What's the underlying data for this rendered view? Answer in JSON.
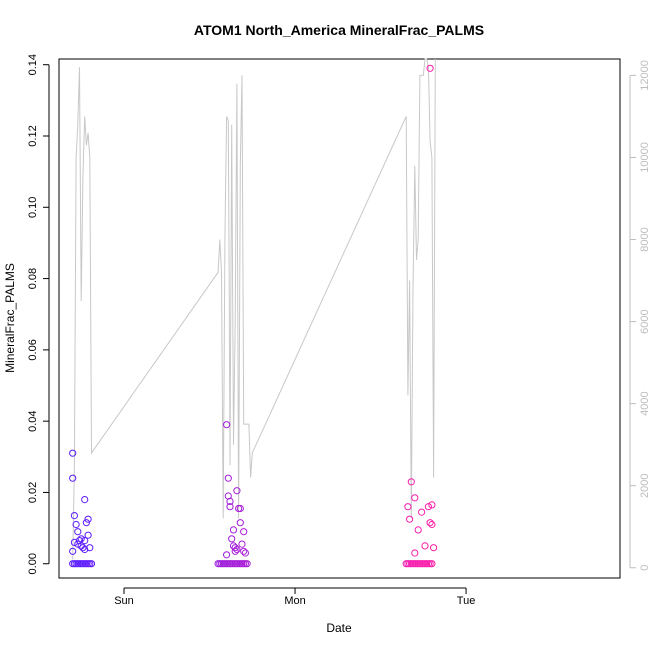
{
  "chart_data": {
    "type": "scatter",
    "title": "ATOM1 North_America MineralFrac_PALMS",
    "xlabel": "Date",
    "ylabel": "MineralFrac_PALMS",
    "x_ticks": [
      "Sun",
      "Mon",
      "Tue"
    ],
    "y_ticks": [
      "0.00",
      "0.02",
      "0.04",
      "0.06",
      "0.08",
      "0.10",
      "0.12",
      "0.14"
    ],
    "y2_ticks": [
      "0",
      "2000",
      "4000",
      "6000",
      "8000",
      "10000",
      "12000"
    ],
    "xlim": [
      -0.38,
      2.9
    ],
    "ylim": [
      -0.004,
      0.1416
    ],
    "y2lim": [
      -250,
      12400
    ],
    "grid": false,
    "colors": {
      "line": "#c8c8c8",
      "right_axis": "#bdbdbd",
      "points_start": "#5a1dff",
      "points_end": "#ff1fa9"
    },
    "series": [
      {
        "type": "scatter",
        "axis": "left",
        "x": [
          -0.3,
          -0.29,
          -0.28,
          -0.27,
          -0.26,
          -0.25,
          -0.24,
          -0.23,
          -0.22,
          -0.21,
          -0.2,
          -0.19,
          -0.3,
          -0.3,
          -0.29,
          -0.28,
          -0.27,
          -0.26,
          -0.25,
          -0.24,
          -0.23,
          -0.22,
          -0.21,
          -0.2,
          -0.23,
          -0.21,
          -0.3,
          -0.29,
          -0.27,
          -0.25,
          -0.23,
          0.55,
          0.56,
          0.57,
          0.58,
          0.59,
          0.6,
          0.61,
          0.62,
          0.63,
          0.64,
          0.65,
          0.66,
          0.67,
          0.68,
          0.69,
          0.7,
          0.71,
          0.72,
          0.6,
          0.61,
          0.61,
          0.62,
          0.63,
          0.64,
          0.65,
          0.66,
          0.67,
          0.68,
          0.69,
          0.7,
          0.71,
          0.62,
          0.64,
          0.66,
          0.68,
          0.7,
          0.65,
          0.6,
          1.65,
          1.66,
          1.67,
          1.68,
          1.69,
          1.7,
          1.71,
          1.72,
          1.73,
          1.74,
          1.75,
          1.76,
          1.77,
          1.78,
          1.79,
          1.8,
          1.66,
          1.67,
          1.68,
          1.7,
          1.72,
          1.74,
          1.76,
          1.78,
          1.79,
          1.8,
          1.8,
          1.79,
          1.81,
          1.7
        ],
        "y": [
          0,
          0,
          0,
          0,
          0,
          0,
          0,
          0,
          0,
          0,
          0,
          0,
          0.031,
          0.024,
          0.0135,
          0.011,
          0.009,
          0.0065,
          0.005,
          0.0045,
          0.004,
          0.0115,
          0.0125,
          0.0045,
          0.018,
          0.008,
          0.0035,
          0.006,
          0.0055,
          0.007,
          0.0065,
          0,
          0,
          0,
          0,
          0,
          0,
          0,
          0,
          0,
          0,
          0,
          0,
          0,
          0,
          0,
          0,
          0,
          0,
          0.039,
          0.024,
          0.019,
          0.0175,
          0.007,
          0.005,
          0.0045,
          0.004,
          0.0155,
          0.0115,
          0.0055,
          0.0035,
          0.003,
          0.016,
          0.0095,
          0.0205,
          0.0155,
          0.009,
          0.0035,
          0.0025,
          0,
          0,
          0,
          0,
          0,
          0,
          0,
          0,
          0,
          0,
          0,
          0,
          0,
          0,
          0,
          0,
          0.016,
          0.0125,
          0.023,
          0.0185,
          0.0095,
          0.0145,
          0.005,
          0.016,
          0.0115,
          0.011,
          0.0165,
          0.139,
          0.0045,
          0.003
        ]
      },
      {
        "type": "line",
        "axis": "right",
        "x": [
          -0.3,
          -0.29,
          -0.28,
          -0.27,
          -0.26,
          -0.25,
          -0.24,
          -0.23,
          -0.22,
          -0.21,
          -0.2,
          -0.19,
          0.55,
          0.56,
          0.57,
          0.58,
          0.59,
          0.6,
          0.61,
          0.615,
          0.62,
          0.63,
          0.64,
          0.65,
          0.66,
          0.67,
          0.68,
          0.69,
          0.7,
          0.71,
          0.72,
          0.73,
          0.74,
          0.75,
          1.65,
          1.66,
          1.67,
          1.68,
          1.69,
          1.7,
          1.71,
          1.72,
          1.73,
          1.74,
          1.75,
          1.76,
          1.77,
          1.78,
          1.79,
          1.8,
          1.81,
          1.82
        ],
        "y": [
          200,
          2500,
          10000,
          10800,
          12200,
          6500,
          9500,
          11000,
          10300,
          10600,
          10000,
          2800,
          7200,
          8000,
          7200,
          1200,
          8000,
          11000,
          10900,
          6800,
          2500,
          10800,
          3000,
          6000,
          11800,
          1200,
          9800,
          12000,
          3500,
          3500,
          3500,
          3500,
          2200,
          2800,
          11000,
          4200,
          7000,
          1200,
          6800,
          9800,
          7500,
          8000,
          12000,
          12000,
          12000,
          12400,
          12400,
          12200,
          10400,
          10000,
          2200,
          12400
        ]
      }
    ]
  }
}
